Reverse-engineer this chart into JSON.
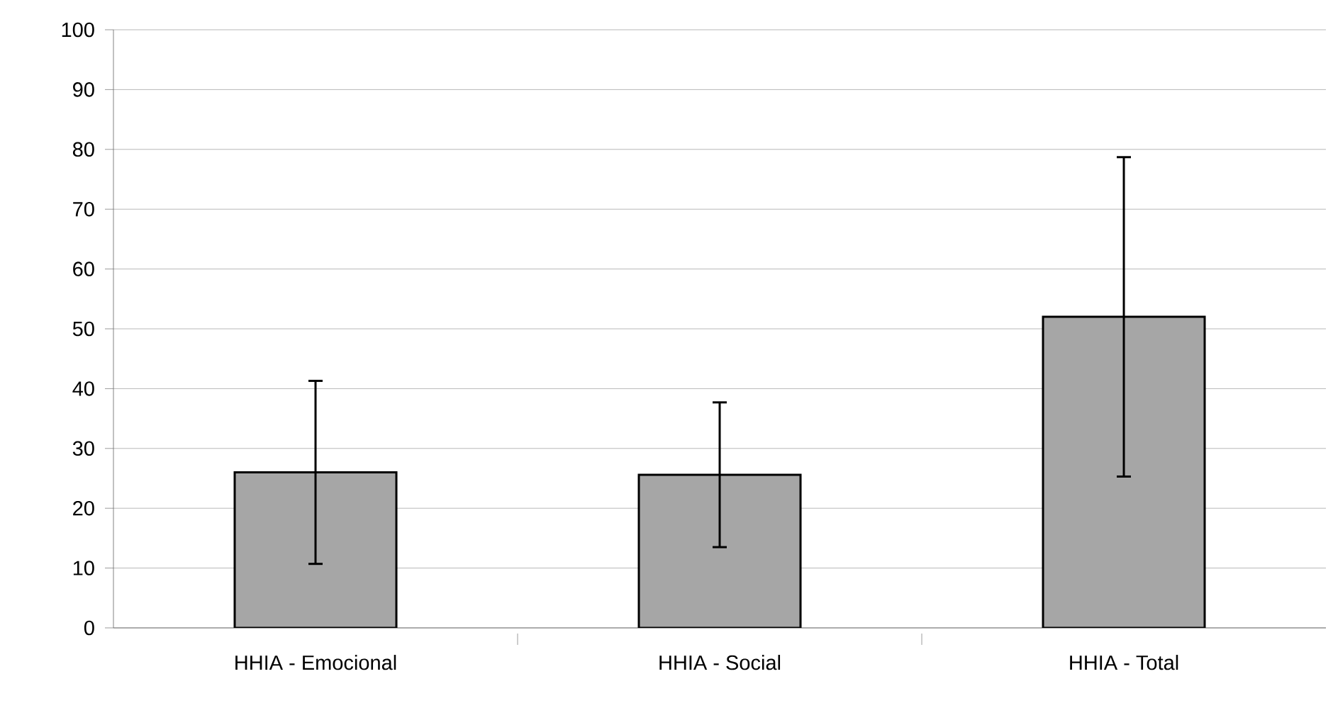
{
  "chart_data": {
    "type": "bar",
    "categories": [
      "HHIA - Emocional",
      "HHIA - Social",
      "HHIA - Total"
    ],
    "values": [
      26,
      25.6,
      52
    ],
    "errors": [
      15.3,
      12.1,
      26.7
    ],
    "color": "#a6a6a6",
    "ylim": [
      0,
      100
    ],
    "yticks": [
      0,
      10,
      20,
      30,
      40,
      50,
      60,
      70,
      80,
      90,
      100
    ],
    "grid": "y"
  }
}
